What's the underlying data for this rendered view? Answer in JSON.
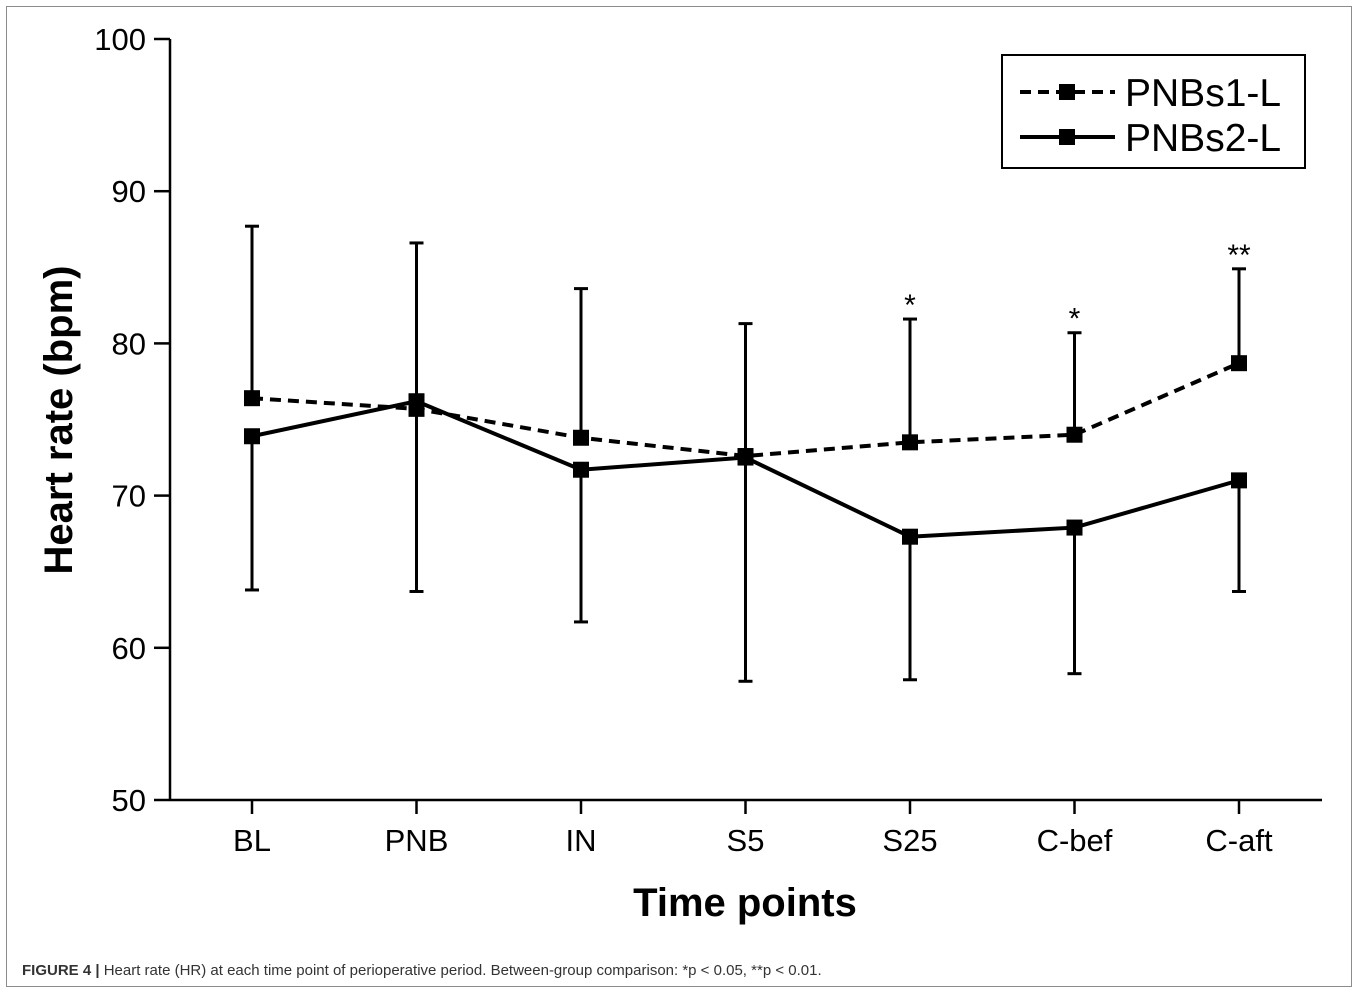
{
  "chart_data": {
    "type": "line",
    "title": "",
    "xlabel": "Time points",
    "ylabel": "Heart rate (bpm)",
    "categories": [
      "BL",
      "PNB",
      "IN",
      "S5",
      "S25",
      "C-bef",
      "C-aft"
    ],
    "ylim": [
      50,
      100
    ],
    "yticks": [
      50,
      60,
      70,
      80,
      90,
      100
    ],
    "grid": false,
    "legend_position": "top-right",
    "series": [
      {
        "name": "PNBs1-L",
        "style": "dashed",
        "marker": "square",
        "color": "#000000",
        "values": [
          76.4,
          75.7,
          73.8,
          72.6,
          73.5,
          74.0,
          78.7
        ],
        "error_upper": [
          87.7,
          86.6,
          83.6,
          81.3,
          81.6,
          80.7,
          84.9
        ]
      },
      {
        "name": "PNBs2-L",
        "style": "solid",
        "marker": "square",
        "color": "#000000",
        "values": [
          73.9,
          76.2,
          71.7,
          72.5,
          67.3,
          67.9,
          71.0
        ],
        "error_lower": [
          63.8,
          63.7,
          61.7,
          57.8,
          57.9,
          58.3,
          63.7
        ]
      }
    ],
    "annotations": [
      {
        "category": "S25",
        "text": "*"
      },
      {
        "category": "C-bef",
        "text": "*"
      },
      {
        "category": "C-aft",
        "text": "**"
      }
    ]
  },
  "caption": {
    "label": "FIGURE 4 |",
    "text": " Heart rate (HR) at each time point of perioperative period. Between-group comparison: *p < 0.05, **p < 0.01."
  }
}
